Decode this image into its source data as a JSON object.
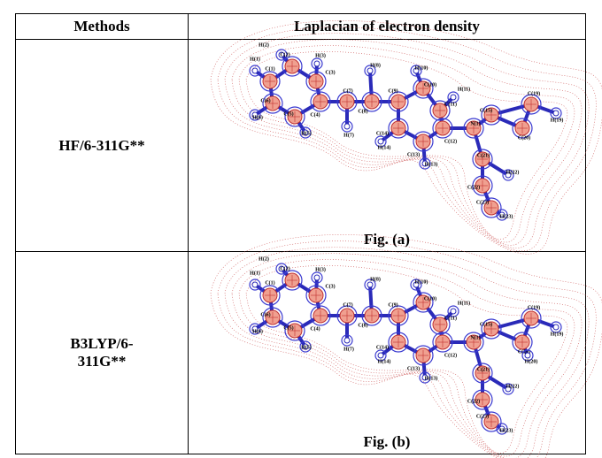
{
  "table": {
    "headers": [
      "Methods",
      "Laplacian of electron density"
    ],
    "rows": [
      {
        "method": "HF/6-311G**",
        "caption": "Fig. (a)",
        "atoms": [
          "H(1)",
          "H(2)",
          "C(1)",
          "C(2)",
          "H(3)",
          "C(3)",
          "C(6)",
          "H(6)",
          "C(5)",
          "H(5)",
          "C(4)",
          "C(7)",
          "H(7)",
          "H(8)",
          "C(8)",
          "C(9)",
          "H(10)",
          "C(10)",
          "H(11)",
          "C(11)",
          "C(12)",
          "C(13)",
          "H(13)",
          "C(14)",
          "H(14)",
          "N(1)",
          "C(15)",
          "C(19)",
          "H(19)",
          "C(20)",
          "C(21)",
          "H(22)",
          "C(22)",
          "C(23)",
          "H(23)"
        ]
      },
      {
        "method": "B3LYP/6-311G**",
        "caption": "Fig. (b)",
        "atoms": [
          "H(1)",
          "H(2)",
          "C(1)",
          "C(2)",
          "H(3)",
          "C(3)",
          "C(6)",
          "H(6)",
          "C(5)",
          "H(5)",
          "C(4)",
          "C(7)",
          "H(7)",
          "H(8)",
          "C(8)",
          "C(9)",
          "H(10)",
          "C(10)",
          "H(11)",
          "C(11)",
          "C(12)",
          "C(13)",
          "H(13)",
          "C(14)",
          "H(14)",
          "N(1)",
          "C(15)",
          "C(19)",
          "H(19)",
          "C(20)",
          "C(21)",
          "H(22)",
          "C(22)",
          "C(23)",
          "H(23)",
          "H(20)"
        ]
      }
    ]
  }
}
